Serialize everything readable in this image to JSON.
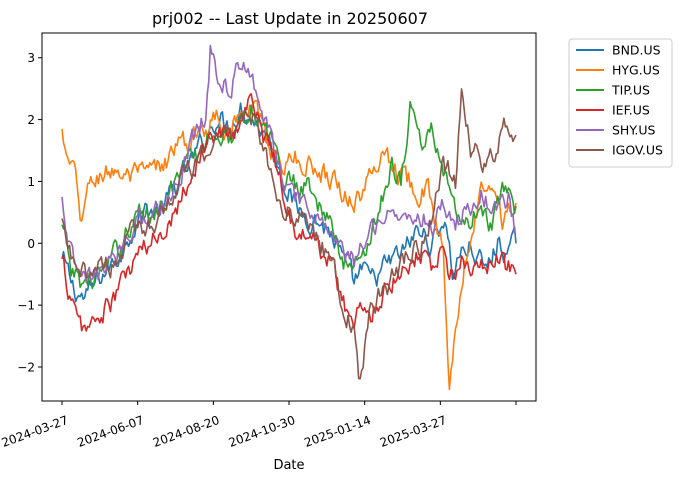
{
  "chart_data": {
    "type": "line",
    "title": "prj002 -- Last Update in 20250607",
    "xlabel": "Date",
    "ylabel": "",
    "x_ticks": [
      "2024-03-27",
      "2024-06-07",
      "2024-08-20",
      "2024-10-30",
      "2025-01-14",
      "2025-03-27",
      ""
    ],
    "x_tick_index": [
      0,
      50,
      100,
      150,
      200,
      250,
      300
    ],
    "n_points": 301,
    "ylim": [
      -2.55,
      3.4
    ],
    "y_ticks": [
      -2,
      -1,
      0,
      1,
      2,
      3
    ],
    "y_tick_labels": [
      "−2",
      "−1",
      "0",
      "1",
      "2",
      "3"
    ],
    "legend_position": "outside-top-right",
    "grid": false,
    "series": [
      {
        "name": "BND.US",
        "color": "#1f77b4",
        "anchors": [
          [
            0,
            -0.25
          ],
          [
            8,
            -0.75
          ],
          [
            15,
            -0.9
          ],
          [
            25,
            -0.55
          ],
          [
            35,
            -0.3
          ],
          [
            45,
            0.2
          ],
          [
            55,
            0.55
          ],
          [
            65,
            0.5
          ],
          [
            75,
            0.9
          ],
          [
            85,
            1.3
          ],
          [
            95,
            1.7
          ],
          [
            102,
            2.05
          ],
          [
            110,
            1.9
          ],
          [
            118,
            2.2
          ],
          [
            125,
            2.05
          ],
          [
            132,
            1.85
          ],
          [
            140,
            1.5
          ],
          [
            148,
            0.95
          ],
          [
            155,
            0.55
          ],
          [
            162,
            0.45
          ],
          [
            170,
            0.35
          ],
          [
            178,
            0.15
          ],
          [
            186,
            -0.3
          ],
          [
            193,
            -0.65
          ],
          [
            197,
            -0.45
          ],
          [
            205,
            -0.6
          ],
          [
            215,
            -0.35
          ],
          [
            225,
            -0.15
          ],
          [
            235,
            0.2
          ],
          [
            245,
            0.0
          ],
          [
            253,
            0.45
          ],
          [
            258,
            -0.5
          ],
          [
            262,
            -0.2
          ],
          [
            270,
            -0.05
          ],
          [
            280,
            -0.45
          ],
          [
            288,
            0.0
          ],
          [
            295,
            -0.15
          ],
          [
            300,
            0.0
          ]
        ]
      },
      {
        "name": "HYG.US",
        "color": "#ff7f0e",
        "anchors": [
          [
            0,
            1.85
          ],
          [
            3,
            1.3
          ],
          [
            8,
            1.15
          ],
          [
            12,
            0.4
          ],
          [
            18,
            0.9
          ],
          [
            25,
            1.1
          ],
          [
            35,
            1.2
          ],
          [
            45,
            1.05
          ],
          [
            55,
            1.1
          ],
          [
            65,
            1.2
          ],
          [
            75,
            1.55
          ],
          [
            85,
            1.65
          ],
          [
            95,
            1.9
          ],
          [
            102,
            2.1
          ],
          [
            110,
            1.85
          ],
          [
            118,
            2.0
          ],
          [
            125,
            2.2
          ],
          [
            132,
            1.9
          ],
          [
            140,
            1.45
          ],
          [
            148,
            1.3
          ],
          [
            155,
            1.35
          ],
          [
            165,
            1.25
          ],
          [
            172,
            1.15
          ],
          [
            180,
            1.05
          ],
          [
            186,
            0.8
          ],
          [
            193,
            0.7
          ],
          [
            200,
            0.85
          ],
          [
            208,
            1.3
          ],
          [
            214,
            1.55
          ],
          [
            220,
            1.2
          ],
          [
            228,
            1.05
          ],
          [
            235,
            0.9
          ],
          [
            242,
            0.8
          ],
          [
            248,
            0.25
          ],
          [
            252,
            -0.2
          ],
          [
            256,
            -2.2
          ],
          [
            259,
            -1.5
          ],
          [
            263,
            -0.7
          ],
          [
            270,
            0.2
          ],
          [
            277,
            0.85
          ],
          [
            284,
            1.1
          ],
          [
            291,
            0.4
          ],
          [
            300,
            0.65
          ]
        ]
      },
      {
        "name": "TIP.US",
        "color": "#2ca02c",
        "anchors": [
          [
            0,
            0.3
          ],
          [
            6,
            -0.45
          ],
          [
            14,
            -0.65
          ],
          [
            22,
            -0.55
          ],
          [
            32,
            -0.35
          ],
          [
            42,
            0.15
          ],
          [
            50,
            0.5
          ],
          [
            58,
            0.45
          ],
          [
            66,
            0.7
          ],
          [
            74,
            0.95
          ],
          [
            82,
            1.25
          ],
          [
            90,
            1.45
          ],
          [
            98,
            1.75
          ],
          [
            104,
            1.85
          ],
          [
            110,
            1.65
          ],
          [
            118,
            2.05
          ],
          [
            125,
            2.25
          ],
          [
            132,
            1.8
          ],
          [
            140,
            1.55
          ],
          [
            148,
            1.05
          ],
          [
            155,
            0.95
          ],
          [
            162,
            1.0
          ],
          [
            170,
            0.65
          ],
          [
            178,
            0.25
          ],
          [
            186,
            -0.3
          ],
          [
            193,
            -0.4
          ],
          [
            200,
            -0.05
          ],
          [
            210,
            0.55
          ],
          [
            218,
            1.35
          ],
          [
            224,
            1.0
          ],
          [
            230,
            2.25
          ],
          [
            238,
            1.55
          ],
          [
            245,
            1.85
          ],
          [
            252,
            1.2
          ],
          [
            258,
            0.55
          ],
          [
            266,
            0.25
          ],
          [
            275,
            0.5
          ],
          [
            284,
            0.3
          ],
          [
            292,
            0.8
          ],
          [
            300,
            0.6
          ]
        ]
      },
      {
        "name": "IEF.US",
        "color": "#d62728",
        "anchors": [
          [
            0,
            -0.25
          ],
          [
            5,
            -0.8
          ],
          [
            10,
            -1.3
          ],
          [
            16,
            -1.4
          ],
          [
            24,
            -1.2
          ],
          [
            32,
            -1.0
          ],
          [
            42,
            -0.55
          ],
          [
            50,
            -0.2
          ],
          [
            58,
            -0.05
          ],
          [
            66,
            0.2
          ],
          [
            74,
            0.55
          ],
          [
            82,
            0.95
          ],
          [
            90,
            1.35
          ],
          [
            98,
            1.7
          ],
          [
            104,
            1.8
          ],
          [
            110,
            1.65
          ],
          [
            118,
            2.0
          ],
          [
            125,
            2.35
          ],
          [
            132,
            1.8
          ],
          [
            140,
            1.4
          ],
          [
            148,
            0.7
          ],
          [
            155,
            0.2
          ],
          [
            162,
            0.05
          ],
          [
            170,
            0.0
          ],
          [
            178,
            -0.35
          ],
          [
            186,
            -0.9
          ],
          [
            193,
            -1.4
          ],
          [
            197,
            -1.05
          ],
          [
            205,
            -1.1
          ],
          [
            215,
            -0.65
          ],
          [
            225,
            -0.4
          ],
          [
            235,
            -0.15
          ],
          [
            245,
            -0.35
          ],
          [
            252,
            -0.2
          ],
          [
            258,
            -0.55
          ],
          [
            265,
            -0.25
          ],
          [
            275,
            -0.5
          ],
          [
            284,
            -0.25
          ],
          [
            292,
            -0.35
          ],
          [
            300,
            -0.5
          ]
        ]
      },
      {
        "name": "SHY.US",
        "color": "#9467bd",
        "anchors": [
          [
            0,
            0.75
          ],
          [
            4,
            0.0
          ],
          [
            10,
            -0.55
          ],
          [
            18,
            -0.6
          ],
          [
            26,
            -0.45
          ],
          [
            34,
            -0.3
          ],
          [
            42,
            0.1
          ],
          [
            50,
            0.5
          ],
          [
            58,
            0.4
          ],
          [
            66,
            0.65
          ],
          [
            74,
            0.9
          ],
          [
            82,
            1.4
          ],
          [
            90,
            1.95
          ],
          [
            95,
            2.1
          ],
          [
            98,
            3.15
          ],
          [
            104,
            2.6
          ],
          [
            110,
            2.55
          ],
          [
            118,
            2.8
          ],
          [
            125,
            2.85
          ],
          [
            132,
            2.15
          ],
          [
            140,
            1.55
          ],
          [
            148,
            0.95
          ],
          [
            155,
            0.65
          ],
          [
            162,
            0.5
          ],
          [
            170,
            0.45
          ],
          [
            178,
            0.15
          ],
          [
            186,
            -0.2
          ],
          [
            193,
            -0.35
          ],
          [
            200,
            0.05
          ],
          [
            210,
            0.45
          ],
          [
            218,
            0.55
          ],
          [
            226,
            0.35
          ],
          [
            235,
            0.5
          ],
          [
            245,
            0.25
          ],
          [
            252,
            0.65
          ],
          [
            260,
            0.35
          ],
          [
            268,
            0.55
          ],
          [
            278,
            0.75
          ],
          [
            288,
            0.55
          ],
          [
            295,
            0.7
          ],
          [
            300,
            0.15
          ]
        ]
      },
      {
        "name": "IGOV.US",
        "color": "#8c564b",
        "anchors": [
          [
            0,
            0.4
          ],
          [
            4,
            -0.1
          ],
          [
            10,
            -0.6
          ],
          [
            18,
            -0.45
          ],
          [
            26,
            -0.3
          ],
          [
            34,
            -0.35
          ],
          [
            42,
            0.0
          ],
          [
            50,
            0.25
          ],
          [
            58,
            0.35
          ],
          [
            66,
            0.5
          ],
          [
            74,
            0.85
          ],
          [
            82,
            1.15
          ],
          [
            90,
            1.25
          ],
          [
            98,
            1.55
          ],
          [
            104,
            1.8
          ],
          [
            110,
            1.75
          ],
          [
            118,
            2.15
          ],
          [
            125,
            2.1
          ],
          [
            132,
            1.65
          ],
          [
            140,
            1.05
          ],
          [
            148,
            0.5
          ],
          [
            155,
            0.45
          ],
          [
            162,
            0.35
          ],
          [
            170,
            0.05
          ],
          [
            178,
            -0.35
          ],
          [
            186,
            -1.0
          ],
          [
            193,
            -1.45
          ],
          [
            196,
            -2.3
          ],
          [
            200,
            -1.65
          ],
          [
            205,
            -0.95
          ],
          [
            215,
            -0.7
          ],
          [
            225,
            -0.3
          ],
          [
            235,
            -0.05
          ],
          [
            245,
            0.35
          ],
          [
            252,
            1.25
          ],
          [
            260,
            1.0
          ],
          [
            264,
            2.5
          ],
          [
            270,
            1.55
          ],
          [
            276,
            1.45
          ],
          [
            282,
            1.2
          ],
          [
            290,
            1.7
          ],
          [
            295,
            1.95
          ],
          [
            300,
            1.75
          ]
        ]
      }
    ]
  }
}
